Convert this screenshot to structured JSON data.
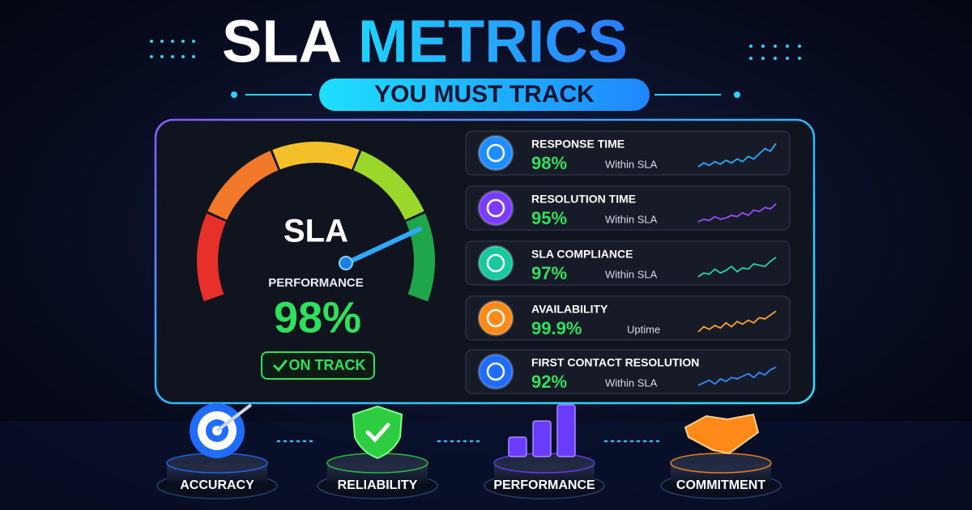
{
  "header": {
    "title_main": "SLA",
    "title_accent": "METRICS",
    "subtitle": "YOU MUST TRACK"
  },
  "gauge": {
    "label": "SLA",
    "caption": "PERFORMANCE",
    "value": "98%",
    "status": "ON TRACK"
  },
  "metrics": [
    {
      "name": "RESPONSE TIME",
      "value": "98%",
      "note": "Within SLA"
    },
    {
      "name": "RESOLUTION TIME",
      "value": "95%",
      "note": "Within SLA"
    },
    {
      "name": "SLA COMPLIANCE",
      "value": "97%",
      "note": "Within SLA"
    },
    {
      "name": "AVAILABILITY",
      "value": "99.9%",
      "note": "Uptime"
    },
    {
      "name": "FIRST CONTACT RESOLUTION",
      "value": "92%",
      "note": "Within SLA"
    }
  ],
  "pillars": [
    {
      "label": "ACCURACY"
    },
    {
      "label": "RELIABILITY"
    },
    {
      "label": "PERFORMANCE"
    },
    {
      "label": "COMMITMENT"
    }
  ]
}
